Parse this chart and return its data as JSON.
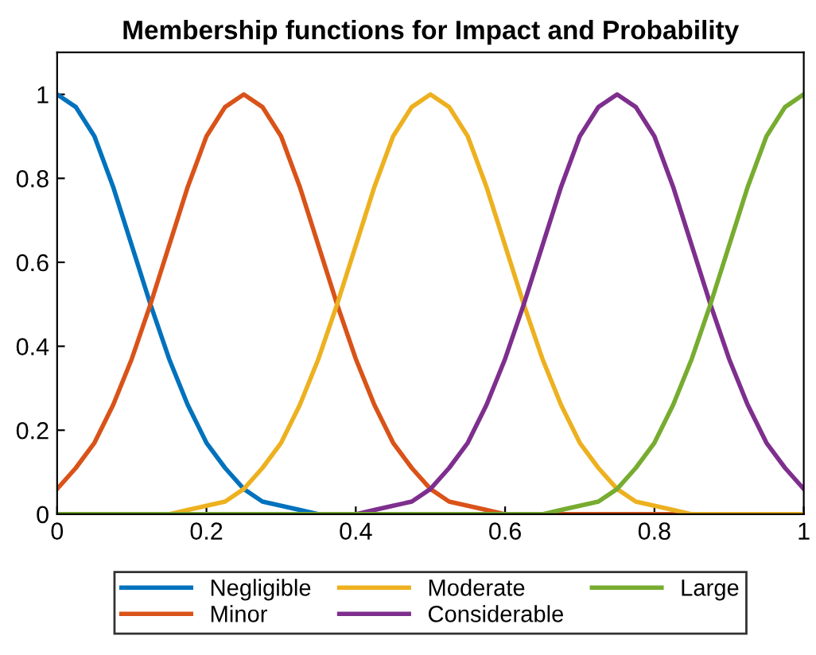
{
  "chart_data": {
    "type": "line",
    "title": "Membership functions for Impact and Probability",
    "x": [
      0,
      0.025,
      0.05,
      0.075,
      0.1,
      0.125,
      0.15,
      0.175,
      0.2,
      0.225,
      0.25,
      0.275,
      0.3,
      0.325,
      0.35,
      0.375,
      0.4,
      0.425,
      0.45,
      0.475,
      0.5,
      0.525,
      0.55,
      0.575,
      0.6,
      0.625,
      0.65,
      0.675,
      0.7,
      0.725,
      0.75,
      0.775,
      0.8,
      0.825,
      0.85,
      0.875,
      0.9,
      0.925,
      0.95,
      0.975,
      1
    ],
    "series": [
      {
        "name": "Negligible",
        "color": "#0072bd",
        "values": [
          1,
          0.97,
          0.9,
          0.78,
          0.64,
          0.5,
          0.37,
          0.26,
          0.17,
          0.11,
          0.06,
          0.03,
          0.02,
          0.01,
          0,
          null,
          null,
          null,
          null,
          null,
          null,
          null,
          null,
          null,
          null,
          null,
          null,
          null,
          null,
          null,
          null,
          null,
          null,
          null,
          null,
          null,
          null,
          null,
          null,
          null,
          null
        ]
      },
      {
        "name": "Minor",
        "color": "#d95319",
        "values": [
          0.06,
          0.11,
          0.17,
          0.26,
          0.37,
          0.5,
          0.64,
          0.78,
          0.9,
          0.97,
          1,
          0.97,
          0.9,
          0.78,
          0.64,
          0.5,
          0.37,
          0.26,
          0.17,
          0.11,
          0.06,
          0.03,
          0.02,
          0.01,
          0,
          0,
          0,
          0,
          0,
          0,
          0,
          0,
          0,
          0,
          0,
          null,
          null,
          null,
          null,
          null,
          null
        ]
      },
      {
        "name": "Moderate",
        "color": "#edb120",
        "values": [
          null,
          null,
          null,
          null,
          null,
          null,
          0,
          0.01,
          0.02,
          0.03,
          0.06,
          0.11,
          0.17,
          0.26,
          0.37,
          0.5,
          0.64,
          0.78,
          0.9,
          0.97,
          1,
          0.97,
          0.9,
          0.78,
          0.64,
          0.5,
          0.37,
          0.26,
          0.17,
          0.11,
          0.06,
          0.03,
          0.02,
          0.01,
          0,
          0,
          0,
          0,
          0,
          0,
          0
        ]
      },
      {
        "name": "Considerable",
        "color": "#7e2f8e",
        "values": [
          null,
          null,
          null,
          null,
          null,
          null,
          null,
          null,
          null,
          null,
          null,
          null,
          null,
          null,
          null,
          null,
          0,
          0.01,
          0.02,
          0.03,
          0.06,
          0.11,
          0.17,
          0.26,
          0.37,
          0.5,
          0.64,
          0.78,
          0.9,
          0.97,
          1,
          0.97,
          0.9,
          0.78,
          0.64,
          0.5,
          0.37,
          0.26,
          0.17,
          0.11,
          0.06
        ]
      },
      {
        "name": "Large",
        "color": "#77ac30",
        "values": [
          0,
          0,
          0,
          0,
          0,
          0,
          0,
          0,
          0,
          0,
          0,
          0,
          0,
          0,
          0,
          0,
          0,
          0,
          0,
          0,
          0,
          0,
          0,
          0,
          0,
          0,
          0,
          0.01,
          0.02,
          0.03,
          0.06,
          0.11,
          0.17,
          0.26,
          0.37,
          0.5,
          0.64,
          0.78,
          0.9,
          0.97,
          1
        ]
      }
    ],
    "xlim": [
      0,
      1
    ],
    "xticks": [
      0,
      0.2,
      0.4,
      0.6,
      0.8,
      1
    ],
    "ylim": [
      0,
      1.1
    ],
    "yticks": [
      0,
      0.2,
      0.4,
      0.6,
      0.8,
      1
    ],
    "grid": false,
    "legend": "bottom",
    "marker": "none",
    "line_style": "solid"
  }
}
